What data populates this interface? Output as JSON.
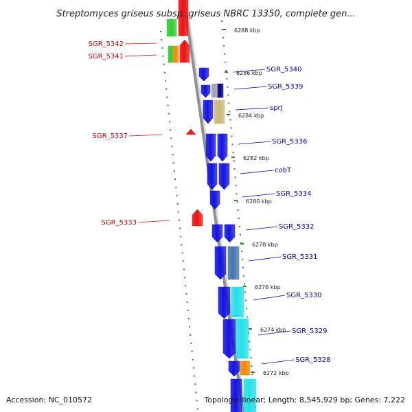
{
  "title": "Streptomyces griseus subsp. griseus NBRC 13350, complete gen...",
  "footer": {
    "accession": "Accession: NC_010572",
    "topology": "Topology: linear; Length: 8,545,929 bp; Genes: 7,222"
  },
  "colors": {
    "forward_label": "#0000aa",
    "reverse_label": "#cc0000",
    "axis": "#909090",
    "tick": "#228822"
  },
  "kbp_ticks": [
    {
      "label": "6288 kbp"
    },
    {
      "label": "6286 kbp"
    },
    {
      "label": "6284 kbp"
    },
    {
      "label": "6282 kbp"
    },
    {
      "label": "6280 kbp"
    },
    {
      "label": "6278 kbp"
    },
    {
      "label": "6276 kbp"
    },
    {
      "label": "6274 kbp"
    },
    {
      "label": "6272 kbp"
    }
  ],
  "forward_labels": [
    {
      "label": "SGR_5340"
    },
    {
      "label": "SGR_5339"
    },
    {
      "label": "sprJ"
    },
    {
      "label": "SGR_5336"
    },
    {
      "label": "cobT"
    },
    {
      "label": "SGR_5334"
    },
    {
      "label": "SGR_5332"
    },
    {
      "label": "SGR_5331"
    },
    {
      "label": "SGR_5330"
    },
    {
      "label": "SGR_5329"
    },
    {
      "label": "SGR_5328"
    }
  ],
  "reverse_labels": [
    {
      "label": "SGR_5342"
    },
    {
      "label": "SGR_5341"
    },
    {
      "label": "SGR_5337"
    },
    {
      "label": "SGR_5333"
    }
  ]
}
